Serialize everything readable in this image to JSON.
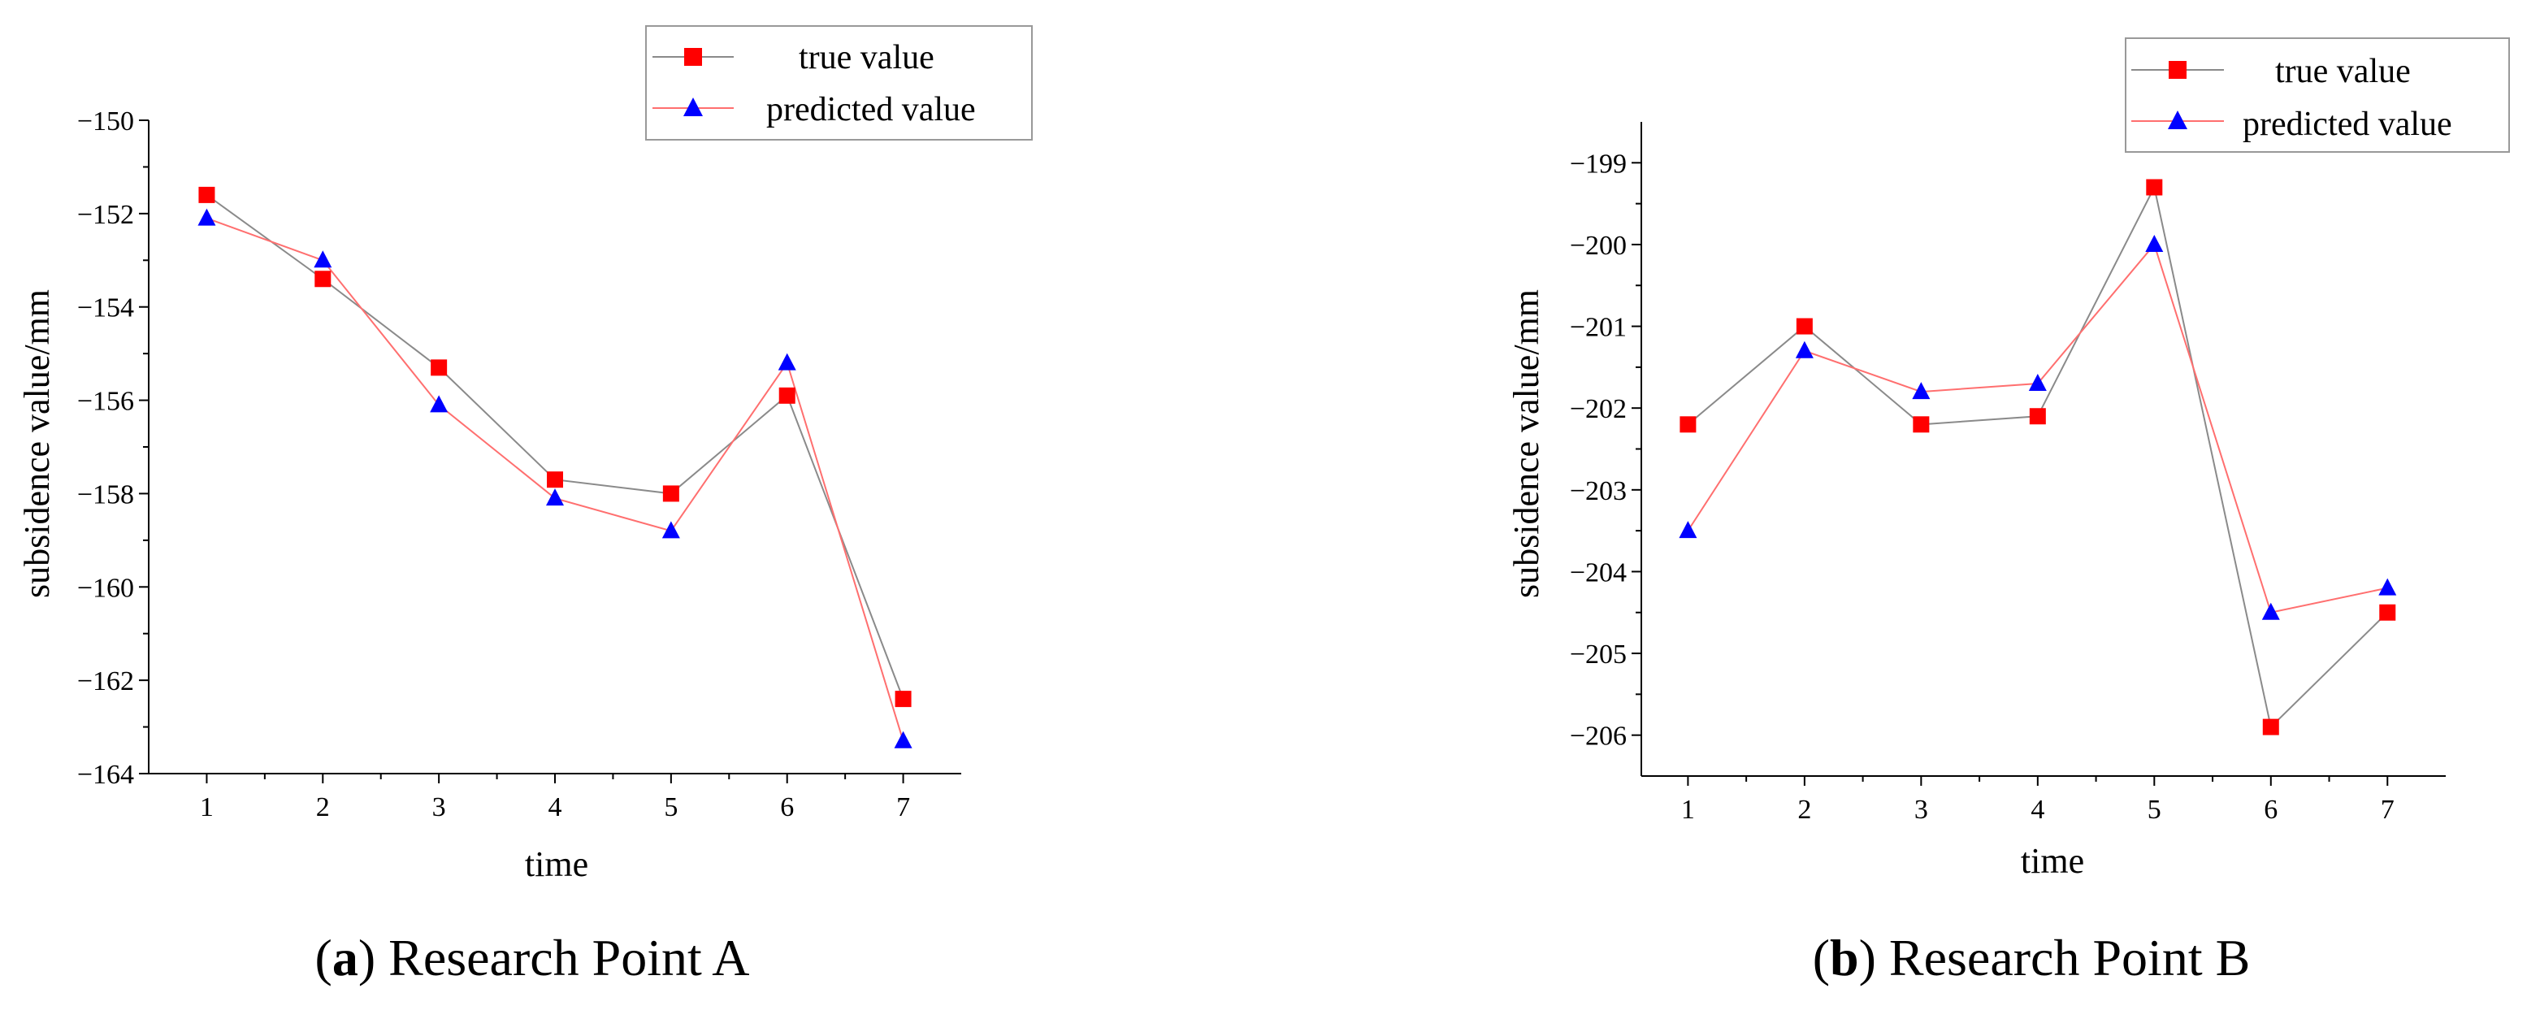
{
  "chart_data": [
    {
      "type": "line",
      "caption_letter": "a",
      "caption_text": "Research Point A",
      "xlabel": "time",
      "ylabel": "subsidence value/mm",
      "x": [
        1,
        2,
        3,
        4,
        5,
        6,
        7
      ],
      "x_tick_labels": [
        "1",
        "2",
        "3",
        "4",
        "5",
        "6",
        "7"
      ],
      "xlim": [
        0.5,
        7.5
      ],
      "ylim": [
        -164,
        -150
      ],
      "y_ticks": [
        -150,
        -152,
        -154,
        -156,
        -158,
        -160,
        -162,
        -164
      ],
      "y_tick_labels": [
        "−150",
        "−152",
        "−154",
        "−156",
        "−158",
        "−160",
        "−162",
        "−164"
      ],
      "legend_position": "top-right",
      "series": [
        {
          "name": "true value",
          "marker": "square",
          "marker_color": "#ff0000",
          "line_color": "#8a8a8a",
          "values": [
            -151.6,
            -153.4,
            -155.3,
            -157.7,
            -158.0,
            -155.9,
            -162.4
          ]
        },
        {
          "name": "predicted value",
          "marker": "triangle",
          "marker_color": "#0000ff",
          "line_color": "#ff6f6f",
          "values": [
            -152.1,
            -153.0,
            -156.1,
            -158.1,
            -158.8,
            -155.2,
            -163.3
          ]
        }
      ]
    },
    {
      "type": "line",
      "caption_letter": "b",
      "caption_text": "Research Point B",
      "xlabel": "time",
      "ylabel": "subsidence value/mm",
      "x": [
        1,
        2,
        3,
        4,
        5,
        6,
        7
      ],
      "x_tick_labels": [
        "1",
        "2",
        "3",
        "4",
        "5",
        "6",
        "7"
      ],
      "xlim": [
        0.6,
        7.5
      ],
      "ylim": [
        -206.5,
        -198.5
      ],
      "y_ticks": [
        -199,
        -200,
        -201,
        -202,
        -203,
        -204,
        -205,
        -206
      ],
      "y_tick_labels": [
        "−199",
        "−200",
        "−201",
        "−202",
        "−203",
        "−204",
        "−205",
        "−206"
      ],
      "legend_position": "top-right",
      "series": [
        {
          "name": "true value",
          "marker": "square",
          "marker_color": "#ff0000",
          "line_color": "#8a8a8a",
          "values": [
            -202.2,
            -201.0,
            -202.2,
            -202.1,
            -199.3,
            -205.9,
            -204.5
          ]
        },
        {
          "name": "predicted value",
          "marker": "triangle",
          "marker_color": "#0000ff",
          "line_color": "#ff6f6f",
          "values": [
            -203.5,
            -201.3,
            -201.8,
            -201.7,
            -200.0,
            -204.5,
            -204.2
          ]
        }
      ]
    }
  ]
}
